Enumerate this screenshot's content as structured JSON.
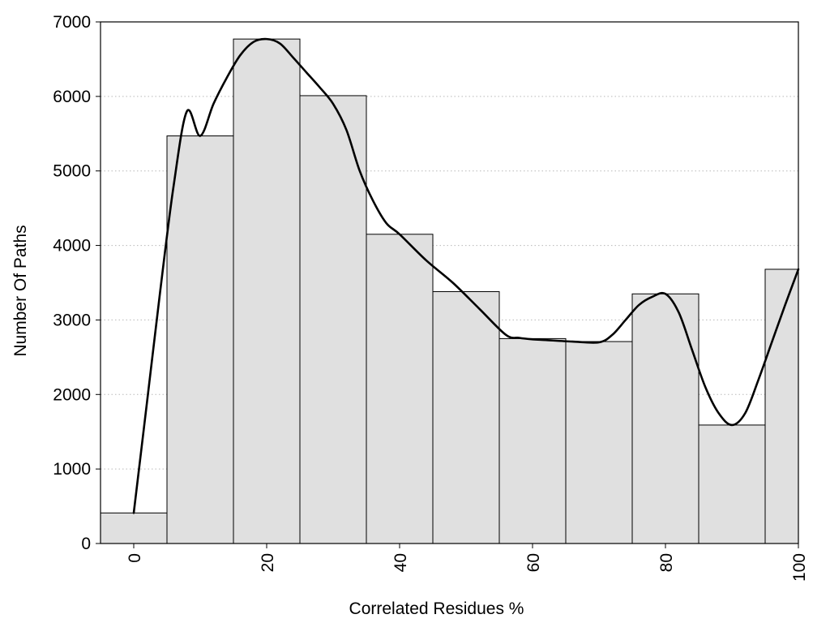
{
  "chart_data": {
    "type": "bar",
    "xlabel": "Correlated Residues %",
    "ylabel": "Number Of Paths",
    "xlim": [
      -5,
      100
    ],
    "ylim": [
      0,
      7000
    ],
    "y_ticks": [
      "0",
      "1000",
      "2000",
      "3000",
      "4000",
      "5000",
      "6000",
      "7000"
    ],
    "x_ticks": [
      "0",
      "20",
      "40",
      "60",
      "80",
      "100"
    ],
    "grid": "horizontal dotted",
    "bar_color": "#e0e0e0",
    "bars": [
      {
        "x": 0,
        "value": 410
      },
      {
        "x": 10,
        "value": 5470
      },
      {
        "x": 20,
        "value": 6770
      },
      {
        "x": 30,
        "value": 6010
      },
      {
        "x": 40,
        "value": 4150
      },
      {
        "x": 50,
        "value": 3380
      },
      {
        "x": 60,
        "value": 2750
      },
      {
        "x": 70,
        "value": 2710
      },
      {
        "x": 80,
        "value": 3350
      },
      {
        "x": 90,
        "value": 1590
      },
      {
        "x": 100,
        "value": 3680
      }
    ],
    "bar_width": 10,
    "curve": {
      "type": "line",
      "x": [
        0,
        2,
        4,
        6,
        8,
        10,
        12,
        14,
        16,
        18,
        20,
        22,
        24,
        26,
        28,
        30,
        32,
        34,
        36,
        38,
        40,
        44,
        48,
        52,
        56,
        58,
        60,
        62,
        66,
        70,
        72,
        74,
        76,
        78,
        80,
        82,
        84,
        86,
        88,
        90,
        92,
        94,
        96,
        98,
        100
      ],
      "y": [
        410,
        1900,
        3400,
        4800,
        5800,
        5470,
        5900,
        6250,
        6550,
        6730,
        6770,
        6710,
        6520,
        6320,
        6120,
        5900,
        5550,
        5000,
        4600,
        4300,
        4150,
        3800,
        3500,
        3150,
        2800,
        2760,
        2740,
        2730,
        2710,
        2700,
        2800,
        3000,
        3200,
        3310,
        3350,
        3100,
        2600,
        2100,
        1750,
        1590,
        1750,
        2200,
        2700,
        3200,
        3680
      ]
    }
  }
}
